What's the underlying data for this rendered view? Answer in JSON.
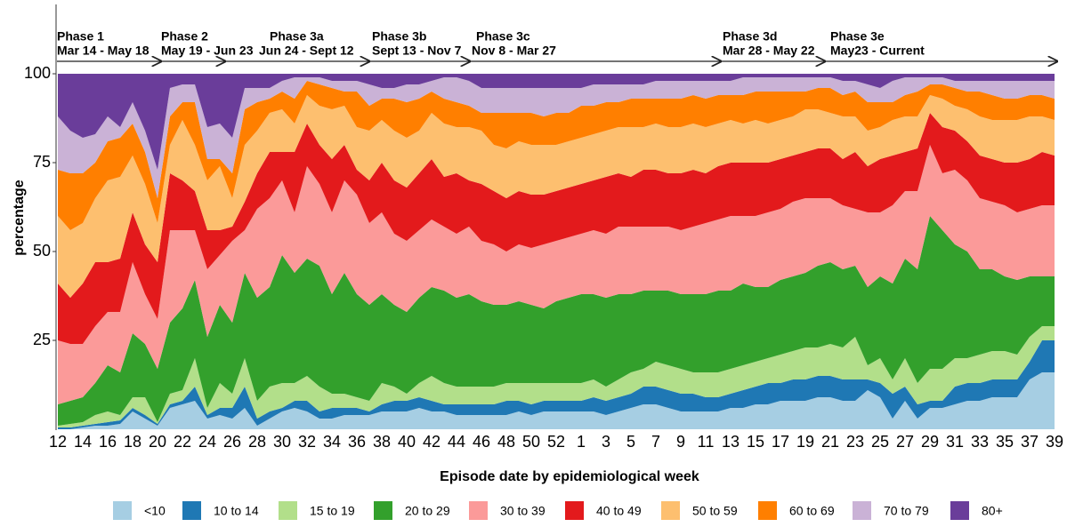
{
  "chart_data": {
    "type": "stacked-area",
    "y_label": "percentage",
    "x_label": "Episode date by epidemiological week",
    "categories": [
      "12",
      null,
      "14",
      null,
      "16",
      null,
      "18",
      null,
      "20",
      null,
      "22",
      null,
      "24",
      null,
      "26",
      null,
      "28",
      null,
      "30",
      null,
      "32",
      null,
      "34",
      null,
      "36",
      null,
      "38",
      null,
      "40",
      null,
      "42",
      null,
      "44",
      null,
      "46",
      null,
      "48",
      null,
      "50",
      null,
      "52",
      null,
      "1",
      null,
      "3",
      null,
      "5",
      null,
      "7",
      null,
      "9",
      null,
      "11",
      null,
      "13",
      null,
      "15",
      null,
      "17",
      null,
      "19",
      null,
      "21",
      null,
      "23",
      null,
      "25",
      null,
      "27",
      null,
      "29",
      null,
      "31",
      null,
      "33",
      null,
      "35",
      null,
      "37",
      null,
      "39"
    ],
    "ylim": [
      0,
      100
    ],
    "yticks": [
      25,
      50,
      75,
      100
    ],
    "grid": false,
    "legend": "bottom",
    "annotations": [
      {
        "title": "Phase 1",
        "dates": "Mar 14 - May 18"
      },
      {
        "title": "Phase 2",
        "dates": "May 19 - Jun 23"
      },
      {
        "title": "Phase 3a",
        "dates": "Jun 24 - Sept 12"
      },
      {
        "title": "Phase 3b",
        "dates": "Sept 13 - Nov 7"
      },
      {
        "title": "Phase 3c",
        "dates": "Nov 8 - Mar 27"
      },
      {
        "title": "Phase 3d",
        "dates": "Mar 28 - May 22"
      },
      {
        "title": "Phase 3e",
        "dates": "May23 - Current"
      }
    ],
    "series": [
      {
        "name": "<10",
        "color": "#a6cee3",
        "values": [
          0,
          0,
          0.5,
          1,
          1,
          1.5,
          5,
          3,
          1,
          6,
          7,
          8,
          3,
          4,
          3,
          6,
          1,
          3,
          5,
          6,
          5,
          3,
          3,
          4,
          4,
          4,
          5,
          5,
          5,
          6,
          5,
          5,
          4,
          4,
          4,
          4,
          4,
          5,
          4,
          5,
          5,
          5,
          5,
          5,
          4,
          5,
          6,
          7,
          7,
          6,
          5,
          5,
          5,
          5,
          6,
          6,
          7,
          7,
          8,
          8,
          8,
          9,
          9,
          8,
          8,
          11,
          9,
          3,
          8,
          3,
          6,
          6,
          7,
          8,
          8,
          9,
          9,
          9,
          14,
          16,
          16
        ]
      },
      {
        "name": "10 to 14",
        "color": "#1f78b4",
        "values": [
          0.5,
          0.5,
          0.5,
          0.5,
          1,
          1,
          1,
          1,
          0.5,
          1,
          1,
          4,
          1,
          2,
          3,
          6,
          2,
          2,
          1,
          2,
          3,
          2,
          3,
          2,
          2,
          1,
          2,
          3,
          3,
          3,
          3,
          2,
          3,
          3,
          3,
          3,
          4,
          3,
          3,
          3,
          3,
          3,
          3,
          4,
          4,
          4,
          4,
          5,
          5,
          5,
          5,
          5,
          4,
          4,
          4,
          5,
          5,
          6,
          5,
          6,
          6,
          6,
          6,
          6,
          6,
          3,
          4,
          7,
          4,
          4,
          2,
          2,
          5,
          5,
          5,
          5,
          5,
          5,
          5,
          9,
          9
        ]
      },
      {
        "name": "15 to 19",
        "color": "#b2df8a",
        "values": [
          0.5,
          1,
          1,
          2.5,
          3,
          1.5,
          3,
          5,
          0.5,
          3,
          3,
          8,
          2,
          7,
          4,
          8,
          5,
          7,
          7,
          5,
          7,
          7,
          4,
          4,
          3,
          3,
          6,
          4,
          2,
          4,
          7,
          6,
          5,
          5,
          5,
          5,
          5,
          5,
          6,
          5,
          5,
          5,
          5,
          5,
          4,
          5,
          6,
          5,
          7,
          7,
          7,
          6,
          7,
          7,
          7,
          7,
          7,
          7,
          8,
          8,
          9,
          8,
          9,
          9,
          12,
          4,
          7,
          4,
          8,
          6,
          9,
          9,
          8,
          7,
          8,
          8,
          8,
          7,
          7,
          4,
          4
        ]
      },
      {
        "name": "20 to 29",
        "color": "#33a02c",
        "values": [
          6,
          6.5,
          7,
          9,
          13,
          12,
          18,
          15,
          15,
          20,
          23,
          22,
          20,
          22,
          20,
          24,
          29,
          28,
          36,
          31,
          33,
          34,
          28,
          34,
          29,
          27,
          25,
          23,
          23,
          24,
          25,
          26,
          25,
          26,
          24,
          23,
          22,
          23,
          22,
          21,
          23,
          24,
          25,
          24,
          25,
          24,
          22,
          22,
          20,
          21,
          21,
          22,
          22,
          23,
          22,
          23,
          21,
          20,
          21,
          21,
          21,
          23,
          23,
          22,
          20,
          22,
          23,
          27,
          28,
          32,
          43,
          39,
          32,
          30,
          24,
          23,
          21,
          21,
          17,
          14,
          14
        ]
      },
      {
        "name": "30 to 39",
        "color": "#fb9a99",
        "values": [
          18,
          16,
          15,
          16,
          15,
          17,
          20,
          14,
          14,
          26,
          22,
          14,
          19,
          14,
          23,
          12,
          25,
          25,
          21,
          17,
          26,
          23,
          23,
          26,
          28,
          23,
          23,
          20,
          20,
          19,
          19,
          18,
          18,
          19,
          17,
          17,
          15,
          16,
          16,
          18,
          17,
          17,
          17,
          18,
          18,
          19,
          19,
          18,
          18,
          18,
          18,
          19,
          20,
          20,
          21,
          19,
          20,
          21,
          20,
          21,
          21,
          19,
          18,
          18,
          16,
          21,
          18,
          22,
          19,
          22,
          20,
          16,
          21,
          20,
          20,
          19,
          20,
          19,
          19,
          20,
          20
        ]
      },
      {
        "name": "40 to 49",
        "color": "#e31a1c",
        "values": [
          16,
          13,
          17,
          18,
          14,
          15,
          14,
          14,
          16,
          16,
          14,
          11,
          11,
          7,
          4,
          8,
          10,
          13,
          8,
          17,
          12,
          11,
          15,
          10,
          7,
          12,
          14,
          15,
          15,
          16,
          17,
          14,
          17,
          13,
          16,
          15,
          15,
          15,
          15,
          14,
          14,
          14,
          14,
          14,
          16,
          15,
          14,
          16,
          16,
          15,
          16,
          16,
          14,
          15,
          15,
          15,
          15,
          14,
          14,
          13,
          13,
          14,
          14,
          13,
          16,
          13,
          15,
          14,
          11,
          12,
          9,
          13,
          11,
          11,
          12,
          12,
          12,
          14,
          14,
          15,
          14
        ]
      },
      {
        "name": "50 to 59",
        "color": "#fdbf6f",
        "values": [
          19,
          19,
          17,
          18,
          23,
          23,
          16,
          17,
          11,
          8,
          17,
          13,
          14,
          18,
          8,
          16,
          12,
          11,
          12,
          8,
          8,
          11,
          14,
          11,
          12,
          14,
          12,
          14,
          14,
          12,
          13,
          15,
          13,
          15,
          15,
          13,
          14,
          14,
          14,
          14,
          13,
          13,
          13,
          13,
          13,
          13,
          14,
          12,
          13,
          13,
          13,
          13,
          13,
          12,
          12,
          11,
          12,
          11,
          11,
          11,
          12,
          11,
          10,
          12,
          10,
          10,
          9,
          10,
          10,
          9,
          5,
          8,
          7,
          9,
          11,
          11,
          12,
          12,
          12,
          10,
          10
        ]
      },
      {
        "name": "60 to 69",
        "color": "#ff7f00",
        "values": [
          13,
          16,
          14,
          10,
          11,
          11,
          9,
          9,
          7,
          8,
          5,
          12,
          6,
          2,
          7,
          10,
          8,
          4,
          5,
          7,
          4,
          6,
          6,
          4,
          10,
          7,
          6,
          9,
          10,
          9,
          6,
          7,
          7,
          6,
          5,
          9,
          10,
          8,
          9,
          8,
          9,
          8,
          9,
          8,
          8,
          7,
          8,
          8,
          7,
          8,
          8,
          8,
          8,
          8,
          7,
          8,
          8,
          9,
          8,
          7,
          5,
          6,
          7,
          6,
          7,
          8,
          7,
          5,
          6,
          7,
          3,
          4,
          5,
          5,
          7,
          7,
          6,
          6,
          6,
          6,
          6
        ]
      },
      {
        "name": "70 to 79",
        "color": "#cab2d6",
        "values": [
          15,
          12,
          10,
          8,
          7,
          3,
          6,
          6,
          8,
          8,
          5,
          5,
          9,
          10,
          10,
          6,
          4,
          3,
          3,
          6,
          1,
          2,
          2,
          3,
          3,
          6,
          3,
          3,
          5,
          4,
          3,
          6,
          7,
          7,
          7,
          7,
          7,
          7,
          7,
          8,
          7,
          7,
          5,
          6,
          5,
          5,
          4,
          4,
          5,
          5,
          5,
          4,
          5,
          4,
          4,
          5,
          4,
          4,
          4,
          4,
          4,
          3,
          3,
          4,
          3,
          5,
          4,
          6,
          5,
          4,
          2,
          2,
          2,
          3,
          3,
          4,
          5,
          5,
          4,
          4,
          5
        ]
      },
      {
        "name": "80+",
        "color": "#6a3d9a",
        "values": [
          12,
          16,
          18,
          17,
          12,
          15,
          8,
          16,
          27,
          4,
          3,
          3,
          15,
          14,
          18,
          4,
          4,
          4,
          2,
          1,
          1,
          1,
          2,
          2,
          2,
          3,
          4,
          4,
          3,
          3,
          2,
          1,
          1,
          2,
          4,
          4,
          4,
          4,
          4,
          4,
          4,
          4,
          4,
          3,
          3,
          3,
          3,
          3,
          2,
          2,
          2,
          2,
          2,
          2,
          2,
          1,
          1,
          1,
          1,
          1,
          1,
          1,
          1,
          2,
          2,
          3,
          4,
          2,
          1,
          1,
          1,
          1,
          2,
          2,
          2,
          2,
          2,
          2,
          2,
          2,
          2
        ]
      }
    ]
  }
}
